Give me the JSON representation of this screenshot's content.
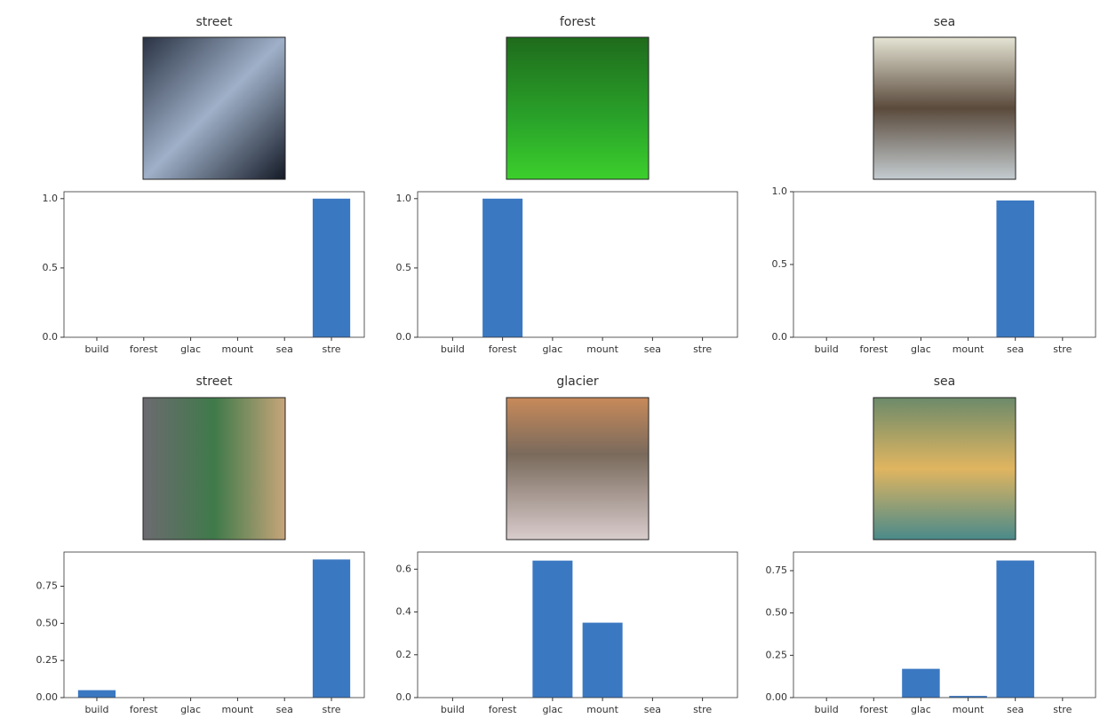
{
  "chart_data": [
    {
      "type": "bar",
      "title": "street",
      "categories": [
        "build",
        "forest",
        "glac",
        "mount",
        "sea",
        "stre"
      ],
      "values": [
        0,
        0,
        0,
        0,
        0,
        1.0
      ],
      "color": "#3b78c2",
      "ylim": [
        0,
        1.05
      ],
      "yticks": [
        {
          "value": 0,
          "label": "0.0"
        },
        {
          "value": 0.5,
          "label": "0.5"
        },
        {
          "value": 1,
          "label": "1.0"
        }
      ]
    },
    {
      "type": "bar",
      "title": "forest",
      "categories": [
        "build",
        "forest",
        "glac",
        "mount",
        "sea",
        "stre"
      ],
      "values": [
        0,
        1.0,
        0,
        0,
        0,
        0
      ],
      "color": "#3b78c2",
      "ylim": [
        0,
        1.05
      ],
      "yticks": [
        {
          "value": 0,
          "label": "0.0"
        },
        {
          "value": 0.5,
          "label": "0.5"
        },
        {
          "value": 1,
          "label": "1.0"
        }
      ]
    },
    {
      "type": "bar",
      "title": "sea",
      "categories": [
        "build",
        "forest",
        "glac",
        "mount",
        "sea",
        "stre"
      ],
      "values": [
        0,
        0,
        0,
        0,
        0.94,
        0
      ],
      "color": "#3b78c2",
      "ylim": [
        0,
        1.0
      ],
      "yticks": [
        {
          "value": 0,
          "label": "0.0"
        },
        {
          "value": 0.5,
          "label": "0.5"
        },
        {
          "value": 1,
          "label": "1.0"
        }
      ]
    },
    {
      "type": "bar",
      "title": "street",
      "categories": [
        "build",
        "forest",
        "glac",
        "mount",
        "sea",
        "stre"
      ],
      "values": [
        0.05,
        0,
        0,
        0,
        0,
        0.93
      ],
      "color": "#3b78c2",
      "ylim": [
        0,
        0.98
      ],
      "yticks": [
        {
          "value": 0,
          "label": "0.00"
        },
        {
          "value": 0.25,
          "label": "0.25"
        },
        {
          "value": 0.5,
          "label": "0.50"
        },
        {
          "value": 0.75,
          "label": "0.75"
        }
      ]
    },
    {
      "type": "bar",
      "title": "glacier",
      "categories": [
        "build",
        "forest",
        "glac",
        "mount",
        "sea",
        "stre"
      ],
      "values": [
        0,
        0,
        0.64,
        0.35,
        0,
        0
      ],
      "color": "#3b78c2",
      "ylim": [
        0,
        0.68
      ],
      "yticks": [
        {
          "value": 0,
          "label": "0.0"
        },
        {
          "value": 0.2,
          "label": "0.2"
        },
        {
          "value": 0.4,
          "label": "0.4"
        },
        {
          "value": 0.6,
          "label": "0.6"
        }
      ]
    },
    {
      "type": "bar",
      "title": "sea",
      "categories": [
        "build",
        "forest",
        "glac",
        "mount",
        "sea",
        "stre"
      ],
      "values": [
        0,
        0,
        0.17,
        0.01,
        0.81,
        0
      ],
      "color": "#3b78c2",
      "ylim": [
        0,
        0.86
      ],
      "yticks": [
        {
          "value": 0,
          "label": "0.00"
        },
        {
          "value": 0.25,
          "label": "0.25"
        },
        {
          "value": 0.5,
          "label": "0.50"
        },
        {
          "value": 0.75,
          "label": "0.75"
        }
      ]
    }
  ]
}
